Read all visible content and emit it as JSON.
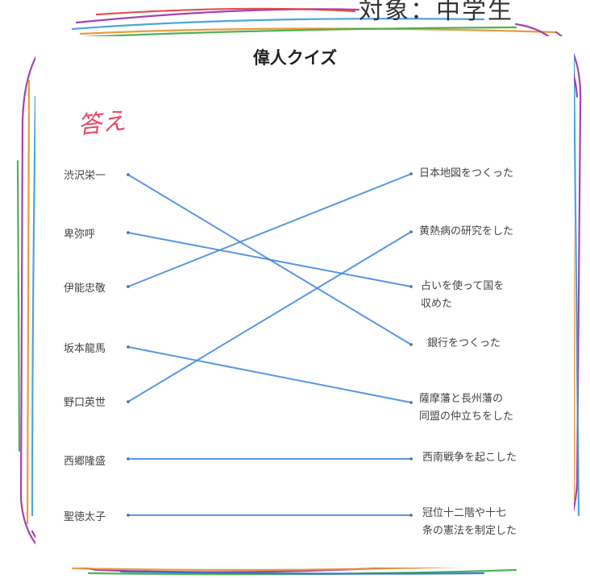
{
  "header": {
    "text": "対象：中学生"
  },
  "quiz": {
    "title": "偉人クイズ",
    "answer_label": "答え",
    "people": [
      "渋沢栄一",
      "卑弥呼",
      "伊能忠敬",
      "坂本龍馬",
      "野口英世",
      "西郷隆盛",
      "聖徳太子"
    ],
    "achievements": [
      [
        "日本地図をつくった"
      ],
      [
        "黄熱病の研究をした"
      ],
      [
        "占いを使って国を",
        "収めた"
      ],
      [
        "銀行をつくった"
      ],
      [
        "薩摩藩と長州藩の",
        "同盟の仲立ちをした"
      ],
      [
        "西南戦争を起こした"
      ],
      [
        "冠位十二階や十七",
        "条の憲法を制定した"
      ]
    ],
    "matches": [
      {
        "person": "渋沢栄一",
        "achievement": "銀行をつくった"
      },
      {
        "person": "卑弥呼",
        "achievement": "占いを使って国を収めた"
      },
      {
        "person": "伊能忠敬",
        "achievement": "日本地図をつくった"
      },
      {
        "person": "坂本龍馬",
        "achievement": "薩摩藩と長州藩の同盟の仲立ちをした"
      },
      {
        "person": "野口英世",
        "achievement": "黄熱病の研究をした"
      },
      {
        "person": "西郷隆盛",
        "achievement": "西南戦争を起こした"
      },
      {
        "person": "聖徳太子",
        "achievement": "冠位十二階や十七条の憲法を制定した"
      }
    ]
  },
  "colors": {
    "line": "#3d85e0",
    "answer": "#e84a6a",
    "frame": [
      "#9b2fa8",
      "#3b9ad9",
      "#e8912c",
      "#3cab3f",
      "#e23b3b",
      "#2a6fd1"
    ]
  }
}
